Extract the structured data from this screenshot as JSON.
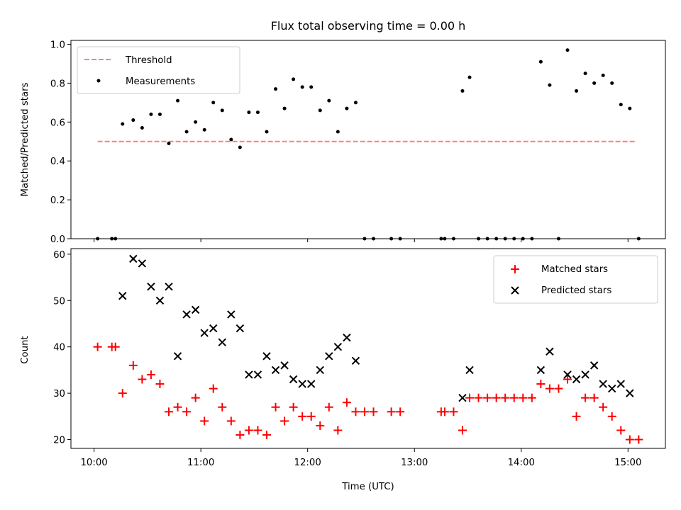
{
  "chart_data": [
    {
      "type": "scatter",
      "title": "Flux total observing time = 0.00 h",
      "xlabel": "",
      "ylabel": "Matched/Predicted stars",
      "xlim": [
        "09:47",
        "15:21"
      ],
      "ylim": [
        0.0,
        1.02
      ],
      "yticks": [
        "0.0",
        "0.2",
        "0.4",
        "0.6",
        "0.8",
        "1.0"
      ],
      "grid": false,
      "legend_position": "top-left",
      "threshold": {
        "name": "Threshold",
        "y": 0.5,
        "x_start": "10:02",
        "x_end": "15:05",
        "color": "#ff7f7f"
      },
      "series": [
        {
          "name": "Measurements",
          "color": "#000000",
          "points": [
            [
              "10:02",
              0.0
            ],
            [
              "10:10",
              0.0
            ],
            [
              "10:12",
              0.0
            ],
            [
              "10:16",
              0.59
            ],
            [
              "10:22",
              0.61
            ],
            [
              "10:27",
              0.57
            ],
            [
              "10:32",
              0.64
            ],
            [
              "10:37",
              0.64
            ],
            [
              "10:42",
              0.49
            ],
            [
              "10:47",
              0.71
            ],
            [
              "10:52",
              0.55
            ],
            [
              "10:57",
              0.6
            ],
            [
              "11:02",
              0.56
            ],
            [
              "11:07",
              0.7
            ],
            [
              "11:12",
              0.66
            ],
            [
              "11:17",
              0.51
            ],
            [
              "11:22",
              0.47
            ],
            [
              "11:27",
              0.65
            ],
            [
              "11:32",
              0.65
            ],
            [
              "11:37",
              0.55
            ],
            [
              "11:42",
              0.77
            ],
            [
              "11:47",
              0.67
            ],
            [
              "11:52",
              0.82
            ],
            [
              "11:57",
              0.78
            ],
            [
              "12:02",
              0.78
            ],
            [
              "12:07",
              0.66
            ],
            [
              "12:12",
              0.71
            ],
            [
              "12:17",
              0.55
            ],
            [
              "12:22",
              0.67
            ],
            [
              "12:27",
              0.7
            ],
            [
              "12:32",
              0.0
            ],
            [
              "12:37",
              0.0
            ],
            [
              "12:47",
              0.0
            ],
            [
              "12:52",
              0.0
            ],
            [
              "13:15",
              0.0
            ],
            [
              "13:17",
              0.0
            ],
            [
              "13:22",
              0.0
            ],
            [
              "13:27",
              0.76
            ],
            [
              "13:31",
              0.83
            ],
            [
              "13:36",
              0.0
            ],
            [
              "13:41",
              0.0
            ],
            [
              "13:46",
              0.0
            ],
            [
              "13:51",
              0.0
            ],
            [
              "13:56",
              0.0
            ],
            [
              "14:01",
              0.0
            ],
            [
              "14:06",
              0.0
            ],
            [
              "14:11",
              0.91
            ],
            [
              "14:16",
              0.79
            ],
            [
              "14:21",
              0.0
            ],
            [
              "14:26",
              0.97
            ],
            [
              "14:31",
              0.76
            ],
            [
              "14:36",
              0.85
            ],
            [
              "14:41",
              0.8
            ],
            [
              "14:46",
              0.84
            ],
            [
              "14:51",
              0.8
            ],
            [
              "14:56",
              0.69
            ],
            [
              "15:01",
              0.67
            ],
            [
              "15:06",
              0.0
            ]
          ]
        }
      ]
    },
    {
      "type": "scatter",
      "title": "",
      "xlabel": "Time (UTC)",
      "ylabel": "Count",
      "xlim": [
        "09:47",
        "15:21"
      ],
      "ylim": [
        18.1,
        61.2
      ],
      "xticks": [
        "10:00",
        "11:00",
        "12:00",
        "13:00",
        "14:00",
        "15:00"
      ],
      "yticks": [
        "20",
        "30",
        "40",
        "50",
        "60"
      ],
      "grid": false,
      "legend_position": "top-right",
      "series": [
        {
          "name": "Matched stars",
          "color": "#ff0000",
          "marker": "plus",
          "points": [
            [
              "10:02",
              40
            ],
            [
              "10:10",
              40
            ],
            [
              "10:12",
              40
            ],
            [
              "10:16",
              30
            ],
            [
              "10:22",
              36
            ],
            [
              "10:27",
              33
            ],
            [
              "10:32",
              34
            ],
            [
              "10:37",
              32
            ],
            [
              "10:42",
              26
            ],
            [
              "10:47",
              27
            ],
            [
              "10:52",
              26
            ],
            [
              "10:57",
              29
            ],
            [
              "11:02",
              24
            ],
            [
              "11:07",
              31
            ],
            [
              "11:12",
              27
            ],
            [
              "11:17",
              24
            ],
            [
              "11:22",
              21
            ],
            [
              "11:27",
              22
            ],
            [
              "11:32",
              22
            ],
            [
              "11:37",
              21
            ],
            [
              "11:42",
              27
            ],
            [
              "11:47",
              24
            ],
            [
              "11:52",
              27
            ],
            [
              "11:57",
              25
            ],
            [
              "12:02",
              25
            ],
            [
              "12:07",
              23
            ],
            [
              "12:12",
              27
            ],
            [
              "12:17",
              22
            ],
            [
              "12:22",
              28
            ],
            [
              "12:27",
              26
            ],
            [
              "12:32",
              26
            ],
            [
              "12:37",
              26
            ],
            [
              "12:47",
              26
            ],
            [
              "12:52",
              26
            ],
            [
              "13:15",
              26
            ],
            [
              "13:17",
              26
            ],
            [
              "13:22",
              26
            ],
            [
              "13:27",
              22
            ],
            [
              "13:31",
              29
            ],
            [
              "13:36",
              29
            ],
            [
              "13:41",
              29
            ],
            [
              "13:46",
              29
            ],
            [
              "13:51",
              29
            ],
            [
              "13:56",
              29
            ],
            [
              "14:01",
              29
            ],
            [
              "14:06",
              29
            ],
            [
              "14:11",
              32
            ],
            [
              "14:16",
              31
            ],
            [
              "14:21",
              31
            ],
            [
              "14:26",
              33
            ],
            [
              "14:31",
              25
            ],
            [
              "14:36",
              29
            ],
            [
              "14:41",
              29
            ],
            [
              "14:46",
              27
            ],
            [
              "14:51",
              25
            ],
            [
              "14:56",
              22
            ],
            [
              "15:01",
              20
            ],
            [
              "15:06",
              20
            ]
          ]
        },
        {
          "name": "Predicted stars",
          "color": "#000000",
          "marker": "x",
          "points": [
            [
              "10:16",
              51
            ],
            [
              "10:22",
              59
            ],
            [
              "10:27",
              58
            ],
            [
              "10:32",
              53
            ],
            [
              "10:37",
              50
            ],
            [
              "10:42",
              53
            ],
            [
              "10:47",
              38
            ],
            [
              "10:52",
              47
            ],
            [
              "10:57",
              48
            ],
            [
              "11:02",
              43
            ],
            [
              "11:07",
              44
            ],
            [
              "11:12",
              41
            ],
            [
              "11:17",
              47
            ],
            [
              "11:22",
              44
            ],
            [
              "11:27",
              34
            ],
            [
              "11:32",
              34
            ],
            [
              "11:37",
              38
            ],
            [
              "11:42",
              35
            ],
            [
              "11:47",
              36
            ],
            [
              "11:52",
              33
            ],
            [
              "11:57",
              32
            ],
            [
              "12:02",
              32
            ],
            [
              "12:07",
              35
            ],
            [
              "12:12",
              38
            ],
            [
              "12:17",
              40
            ],
            [
              "12:22",
              42
            ],
            [
              "12:27",
              37
            ],
            [
              "13:27",
              29
            ],
            [
              "13:31",
              35
            ],
            [
              "14:11",
              35
            ],
            [
              "14:16",
              39
            ],
            [
              "14:26",
              34
            ],
            [
              "14:31",
              33
            ],
            [
              "14:36",
              34
            ],
            [
              "14:41",
              36
            ],
            [
              "14:46",
              32
            ],
            [
              "14:51",
              31
            ],
            [
              "14:56",
              32
            ],
            [
              "15:01",
              30
            ]
          ]
        }
      ]
    }
  ]
}
